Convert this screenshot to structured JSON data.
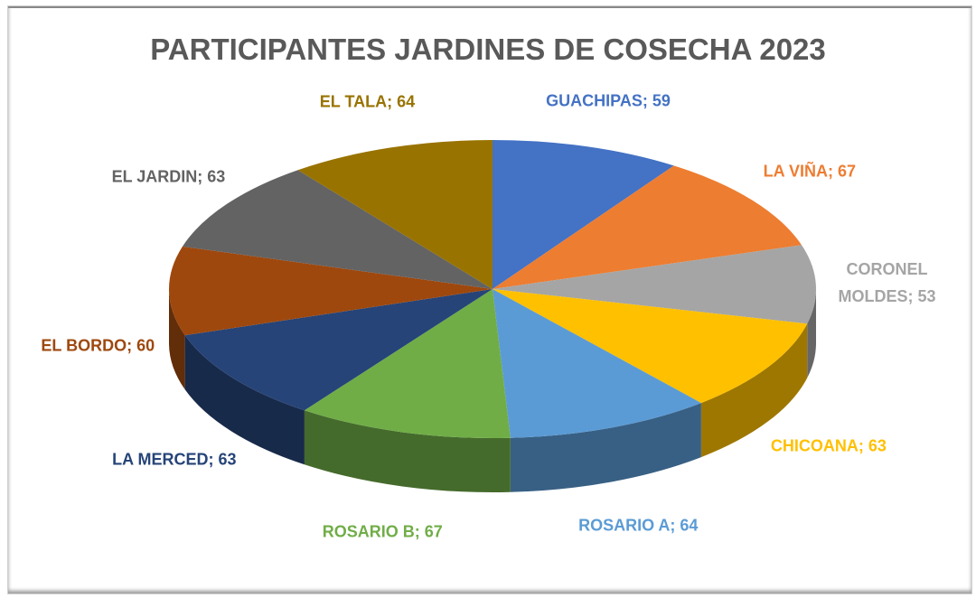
{
  "chart_data": {
    "type": "pie",
    "title": "PARTICIPANTES JARDINES DE COSECHA 2023",
    "categories": [
      "GUACHIPAS",
      "LA VIÑA",
      "CORONEL MOLDES",
      "CHICOANA",
      "ROSARIO A",
      "ROSARIO B",
      "LA MERCED",
      "EL BORDO",
      "EL JARDIN",
      "EL TALA"
    ],
    "values": [
      59,
      67,
      53,
      63,
      64,
      67,
      63,
      60,
      63,
      64
    ],
    "colors": [
      "#4472c4",
      "#ed7d31",
      "#a5a5a5",
      "#ffc000",
      "#5b9bd5",
      "#70ad47",
      "#264478",
      "#9e480e",
      "#636363",
      "#997300"
    ],
    "label_separator": "; "
  }
}
